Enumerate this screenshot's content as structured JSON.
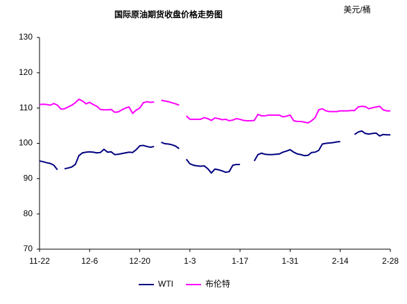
{
  "chart_data": {
    "type": "line",
    "title": "国际原油期货收盘价格走势图",
    "unit": "美元/桶",
    "categories": [
      "11-22",
      null,
      null,
      null,
      null,
      null,
      null,
      null,
      null,
      null,
      null,
      null,
      null,
      null,
      "12-6",
      null,
      null,
      null,
      null,
      null,
      null,
      null,
      null,
      null,
      null,
      null,
      null,
      null,
      "12-20",
      null,
      null,
      null,
      null,
      null,
      null,
      null,
      null,
      null,
      null,
      null,
      null,
      null,
      "1-3",
      null,
      null,
      null,
      null,
      null,
      null,
      null,
      null,
      null,
      null,
      null,
      null,
      null,
      "1-17",
      null,
      null,
      null,
      null,
      null,
      null,
      null,
      null,
      null,
      null,
      null,
      null,
      null,
      "1-31",
      null,
      null,
      null,
      null,
      null,
      null,
      null,
      null,
      null,
      null,
      null,
      null,
      null,
      "2-14",
      null,
      null,
      null,
      null,
      null,
      null,
      null,
      null,
      null,
      null,
      null,
      null,
      null,
      "2-28"
    ],
    "series": [
      {
        "name": "WTI",
        "color": "#000080",
        "values": [
          95.0,
          94.8,
          94.5,
          94.3,
          93.8,
          92.5,
          null,
          92.8,
          93.0,
          93.3,
          94.0,
          96.5,
          97.3,
          97.5,
          97.6,
          97.5,
          97.3,
          97.4,
          98.3,
          97.5,
          97.6,
          96.8,
          96.9,
          97.1,
          97.3,
          97.5,
          97.4,
          98.2,
          99.3,
          99.4,
          99.1,
          98.9,
          99.1,
          null,
          100.3,
          99.9,
          99.8,
          99.6,
          99.2,
          98.5,
          null,
          95.5,
          94.2,
          93.8,
          93.6,
          93.5,
          93.6,
          92.8,
          91.6,
          92.7,
          92.5,
          92.2,
          91.8,
          92.0,
          93.8,
          94.0,
          94.0,
          null,
          null,
          null,
          95.0,
          96.8,
          97.2,
          96.9,
          96.8,
          96.8,
          96.9,
          97.0,
          97.5,
          97.8,
          98.2,
          97.5,
          97.0,
          96.8,
          96.5,
          96.6,
          97.4,
          97.5,
          98.0,
          99.8,
          100.0,
          100.1,
          100.2,
          100.4,
          100.5,
          null,
          null,
          null,
          102.5,
          103.2,
          103.5,
          102.8,
          102.6,
          102.8,
          102.9,
          102.1,
          102.5,
          102.4,
          102.4
        ]
      },
      {
        "name": "布伦特",
        "color": "#ff00ff",
        "values": [
          111.0,
          111.1,
          111.0,
          110.8,
          111.3,
          110.8,
          109.7,
          109.8,
          110.3,
          110.8,
          111.5,
          112.5,
          112.0,
          111.2,
          111.6,
          111.0,
          110.5,
          109.6,
          109.5,
          109.5,
          109.6,
          108.8,
          108.9,
          109.5,
          110.0,
          110.3,
          108.5,
          109.4,
          110.0,
          111.5,
          111.8,
          111.6,
          111.7,
          null,
          112.2,
          112.0,
          111.8,
          111.5,
          111.2,
          110.8,
          null,
          107.8,
          106.8,
          106.8,
          106.8,
          106.8,
          107.3,
          107.0,
          106.5,
          107.2,
          107.0,
          106.7,
          106.8,
          106.4,
          106.6,
          107.0,
          106.8,
          106.5,
          106.4,
          106.4,
          106.5,
          108.2,
          107.8,
          107.8,
          108.0,
          108.0,
          108.0,
          108.0,
          107.5,
          107.7,
          108.0,
          106.4,
          106.2,
          106.2,
          106.0,
          105.8,
          106.4,
          107.3,
          109.5,
          109.8,
          109.2,
          109.0,
          109.0,
          109.0,
          109.2,
          109.2,
          109.2,
          109.3,
          109.3,
          110.3,
          110.5,
          110.4,
          109.8,
          110.1,
          110.3,
          110.5,
          109.5,
          109.2,
          109.2
        ]
      }
    ],
    "ylim": [
      70,
      130
    ],
    "yticks": [
      70,
      80,
      90,
      100,
      110,
      120,
      130
    ],
    "grid": false,
    "legend": "bottom"
  }
}
